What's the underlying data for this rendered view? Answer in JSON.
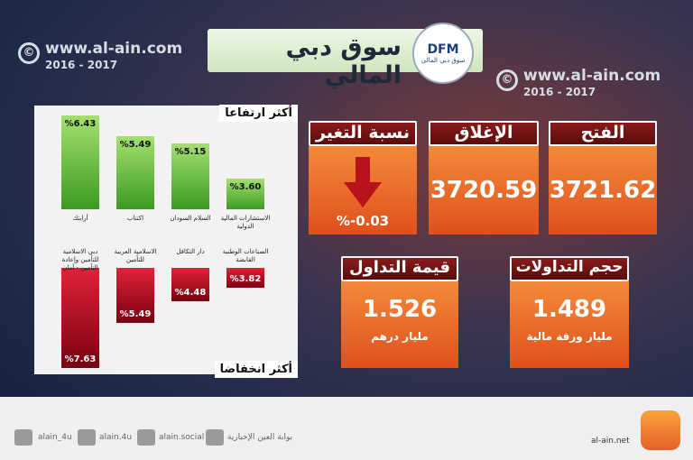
{
  "watermark": {
    "site": "www.al-ain.com",
    "years": "2016 - 2017"
  },
  "header": {
    "title": "سوق دبي المالي",
    "logo": "DFM",
    "logo_sub": "سوق دبي المالي"
  },
  "gainers": {
    "title": "أكثر ارتفاعا",
    "items": [
      {
        "name": "أرابتك",
        "value": 6.43,
        "label": "%6.43"
      },
      {
        "name": "اكتتاب",
        "value": 5.49,
        "label": "%5.49"
      },
      {
        "name": "السلام السودان",
        "value": 5.15,
        "label": "%5.15"
      },
      {
        "name": "الاستشارات المالية الدولية",
        "value": 3.6,
        "label": "%3.60"
      }
    ]
  },
  "losers": {
    "title": "أكثر انخفاضا",
    "items": [
      {
        "name": "دبي الاسلامية للتأمين وإعادة التأمين - أمان",
        "value": 7.63,
        "label": "%7.63"
      },
      {
        "name": "الاسلامية العربية للتأمين",
        "value": 5.49,
        "label": "%5.49"
      },
      {
        "name": "دار التكافل",
        "value": 4.48,
        "label": "%4.48"
      },
      {
        "name": "الصناعات الوطنية القابضة",
        "value": 3.82,
        "label": "%3.82"
      }
    ]
  },
  "stats": {
    "change": {
      "title": "نسبة التغير",
      "value": "%-0.03"
    },
    "close": {
      "title": "الإغلاق",
      "value": "3720.59"
    },
    "open": {
      "title": "الفتح",
      "value": "3721.62"
    },
    "trade_value": {
      "title": "قيمة التداول",
      "value": "1.526",
      "unit": "مليار درهم"
    },
    "volume": {
      "title": "حجم التداولات",
      "value": "1.489",
      "unit": "مليار ورقة مالية"
    }
  },
  "footer": {
    "site": "al-ain.net",
    "social": [
      "alain_4u",
      "alain.4u",
      "alain.social",
      "بوابة العين الإخبارية"
    ]
  }
}
